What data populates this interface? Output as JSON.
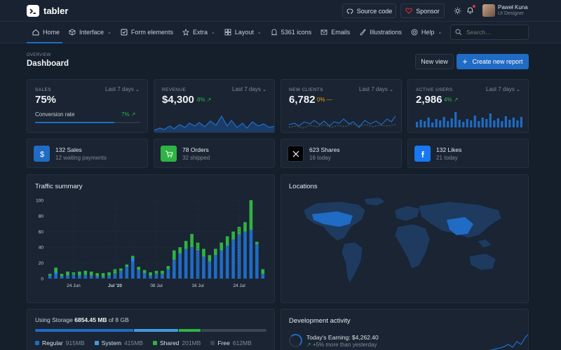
{
  "header": {
    "brand": "tabler",
    "source_code_label": "Source code",
    "sponsor_label": "Sponsor",
    "user_name": "Paweł Kuna",
    "user_role": "UI Designer"
  },
  "nav": {
    "items": [
      {
        "label": "Home",
        "icon": "home-icon",
        "caret": false
      },
      {
        "label": "Interface",
        "icon": "package-icon",
        "caret": true
      },
      {
        "label": "Form elements",
        "icon": "checkbox-icon",
        "caret": false
      },
      {
        "label": "Extra",
        "icon": "star-icon",
        "caret": true
      },
      {
        "label": "Layout",
        "icon": "layout-icon",
        "caret": true
      },
      {
        "label": "5361 icons",
        "icon": "ghost-icon",
        "caret": false
      },
      {
        "label": "Emails",
        "icon": "mail-icon",
        "caret": false
      },
      {
        "label": "Illustrations",
        "icon": "brush-icon",
        "caret": false
      },
      {
        "label": "Help",
        "icon": "lifebuoy-icon",
        "caret": true
      }
    ],
    "search_placeholder": "Search…"
  },
  "page": {
    "pretitle": "OVERVIEW",
    "title": "Dashboard",
    "new_view_label": "New view",
    "create_report_label": "Create new report"
  },
  "stats": {
    "sales": {
      "label": "SALES",
      "range": "Last 7 days",
      "value": "75%",
      "sub_label": "Conversion rate",
      "sub_change": "7%",
      "progress": 75
    },
    "revenue": {
      "label": "REVENUE",
      "range": "Last 7 days",
      "value": "$4,300",
      "change": "8%"
    },
    "clients": {
      "label": "NEW CLIENTS",
      "range": "Last 7 days",
      "value": "6,782",
      "change": "0%"
    },
    "users": {
      "label": "ACTIVE USERS",
      "range": "Last 7 days",
      "value": "2,986",
      "change": "4%"
    }
  },
  "mini": [
    {
      "title": "132 Sales",
      "sub": "12 waiting payments",
      "color": "#206bc4",
      "icon": "dollar-icon"
    },
    {
      "title": "78 Orders",
      "sub": "32 shipped",
      "color": "#2fb344",
      "icon": "cart-icon"
    },
    {
      "title": "623 Shares",
      "sub": "16 today",
      "color": "#000000",
      "icon": "x-logo-icon"
    },
    {
      "title": "132 Likes",
      "sub": "21 today",
      "color": "#1877f2",
      "icon": "facebook-icon"
    }
  ],
  "traffic": {
    "title": "Traffic summary"
  },
  "locations": {
    "title": "Locations"
  },
  "storage": {
    "prefix": "Using Storage",
    "used": "6854.45 MB",
    "suffix": "of 8 GB",
    "legend": [
      {
        "name": "Regular",
        "value": "915MB",
        "color": "#206bc4"
      },
      {
        "name": "System",
        "value": "415MB",
        "color": "#4299e1"
      },
      {
        "name": "Shared",
        "value": "201MB",
        "color": "#2fb344"
      },
      {
        "name": "Free",
        "value": "612MB",
        "color": "#3a4555"
      }
    ]
  },
  "dev": {
    "title": "Development activity",
    "earning": "Today's Earning: $4,262.40",
    "more": "+5% more than yesterday"
  },
  "chart_data": {
    "type": "bar",
    "title": "Traffic summary",
    "ylim": [
      0,
      100
    ],
    "yticks": [
      0,
      20,
      40,
      60,
      80,
      100
    ],
    "xtick_labels": [
      {
        "index": 4,
        "label": "24 Jun"
      },
      {
        "index": 11,
        "label": "Jul '20"
      },
      {
        "index": 18,
        "label": "08 Jul"
      },
      {
        "index": 25,
        "label": "16 Jul"
      },
      {
        "index": 32,
        "label": "24 Jul"
      }
    ],
    "grid": true,
    "stacked": true,
    "series": [
      {
        "color": "#206bc4",
        "values": [
          4,
          6,
          3,
          4,
          5,
          4,
          5,
          4,
          3,
          2,
          4,
          6,
          10,
          15,
          22,
          11,
          7,
          4,
          6,
          6,
          12,
          24,
          32,
          38,
          40,
          36,
          28,
          22,
          30,
          36,
          42,
          50,
          56,
          60,
          62,
          44,
          6
        ]
      },
      {
        "color": "#1f8aff",
        "values": [
          0,
          2,
          0,
          0,
          0,
          0,
          0,
          0,
          0,
          0,
          0,
          0,
          0,
          0,
          4,
          0,
          0,
          0,
          0,
          0,
          0,
          0,
          0,
          0,
          0,
          0,
          0,
          0,
          0,
          0,
          0,
          0,
          0,
          0,
          0,
          0,
          0
        ]
      },
      {
        "color": "#2fb344",
        "values": [
          2,
          6,
          3,
          5,
          3,
          5,
          5,
          5,
          4,
          5,
          4,
          6,
          3,
          3,
          3,
          4,
          4,
          4,
          4,
          4,
          4,
          12,
          8,
          10,
          17,
          10,
          10,
          8,
          8,
          10,
          12,
          10,
          10,
          12,
          38,
          3,
          6
        ]
      }
    ]
  }
}
